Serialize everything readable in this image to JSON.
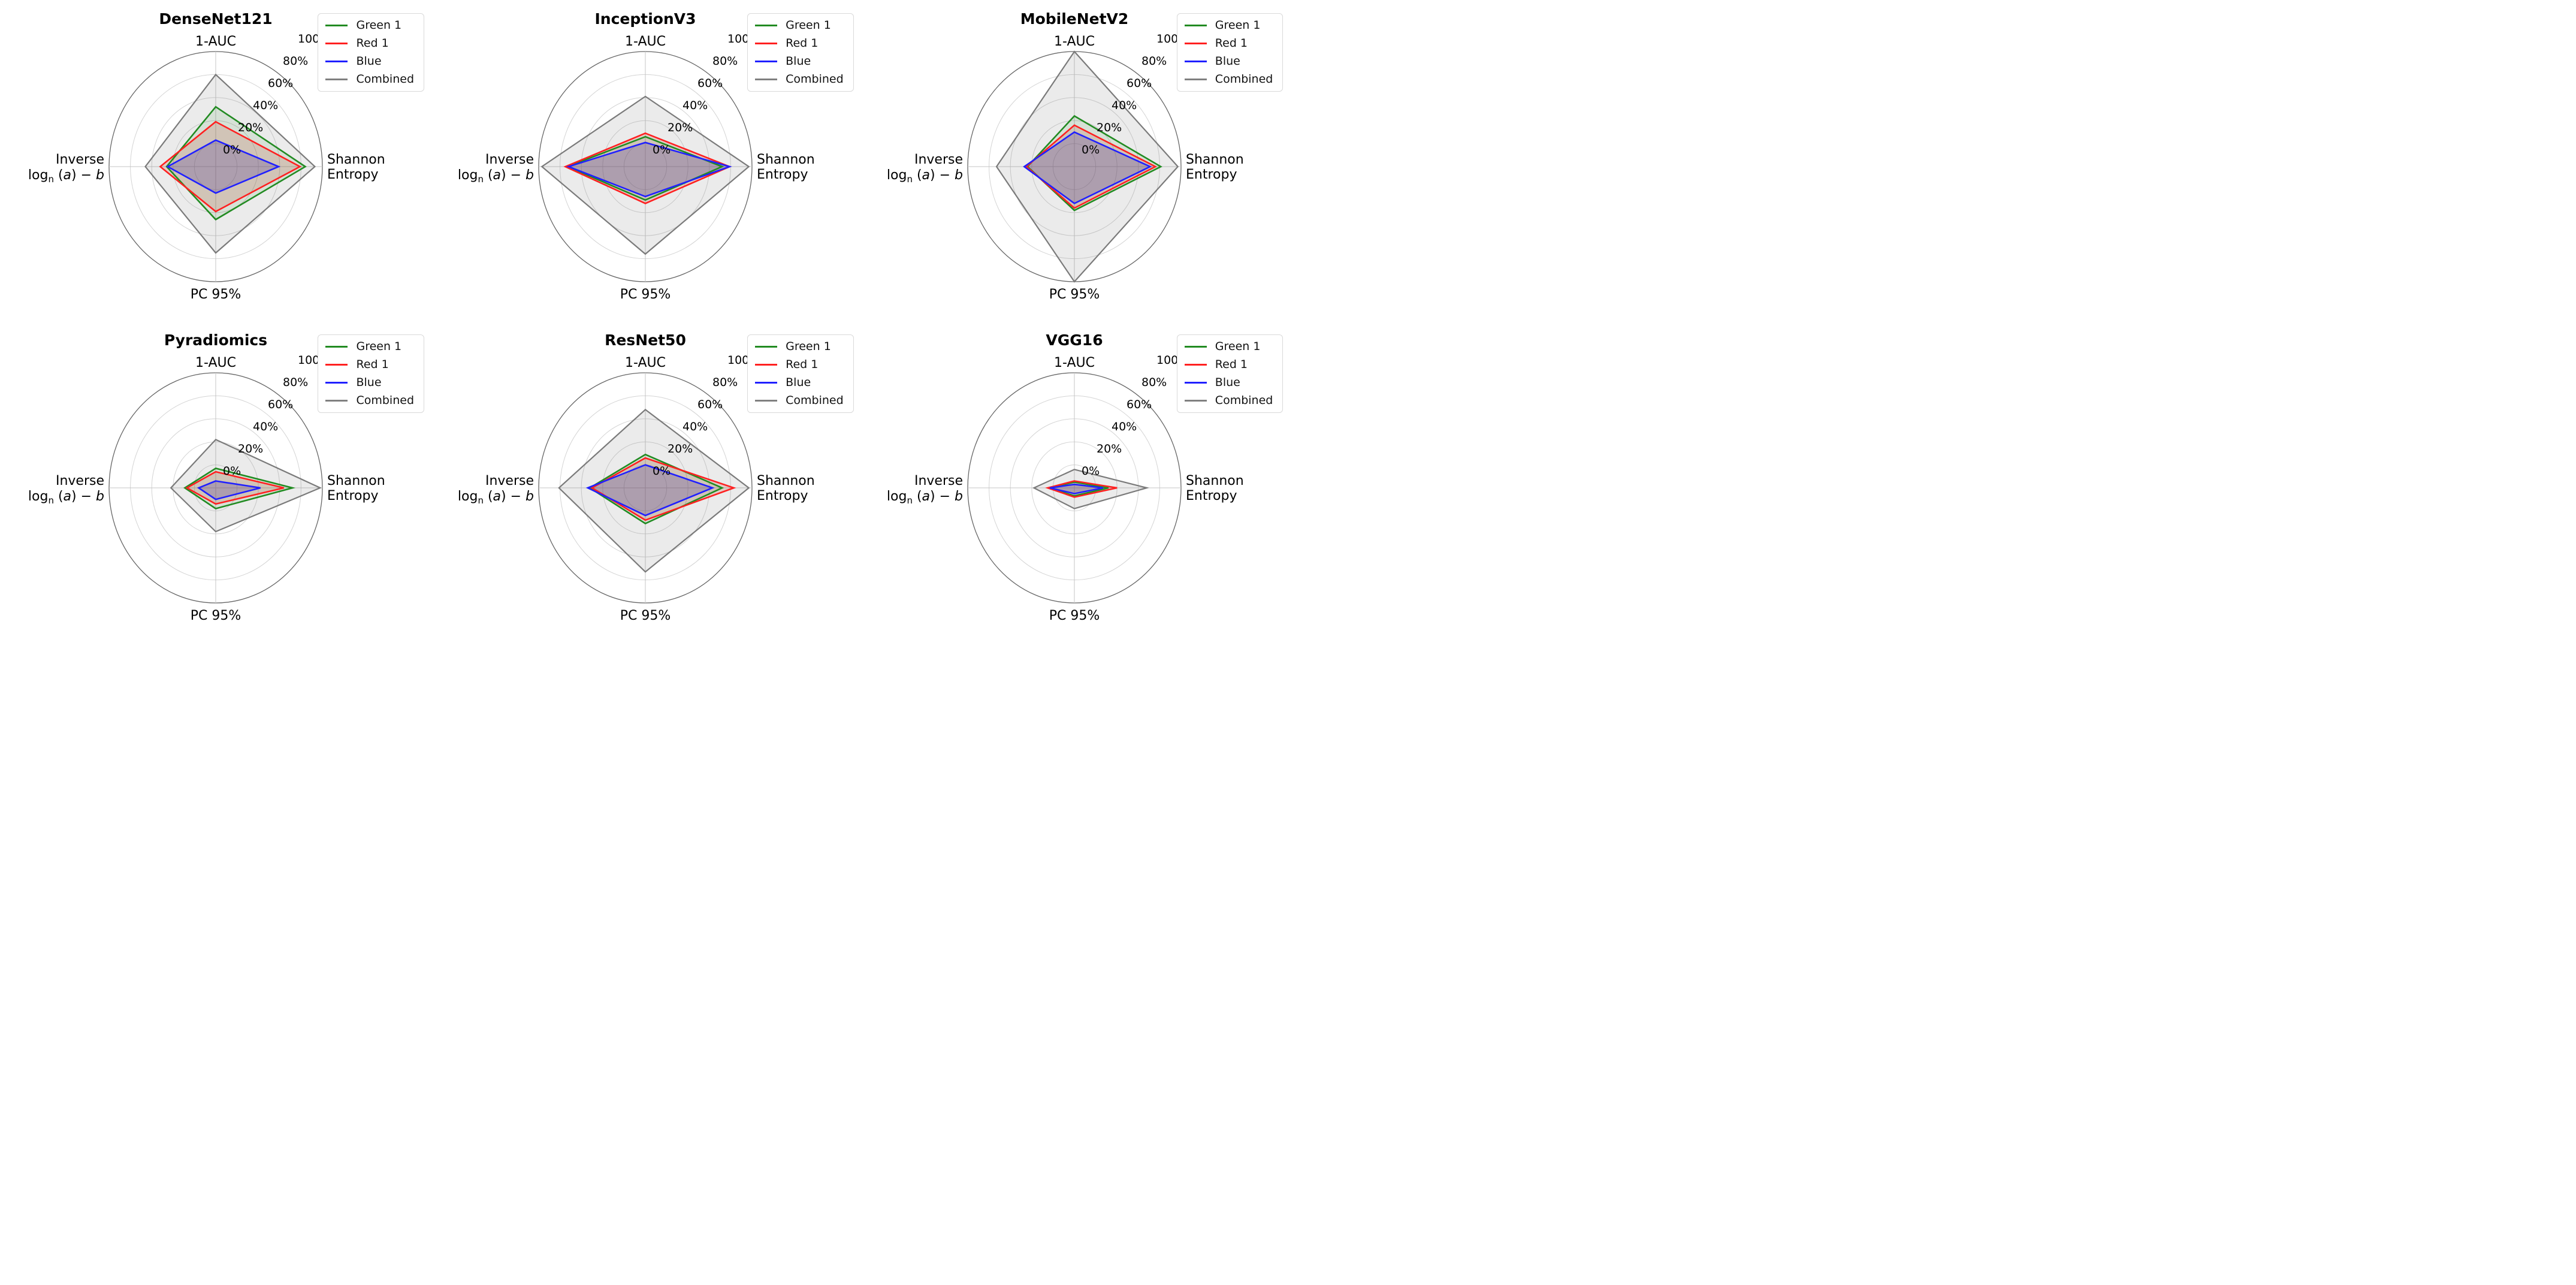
{
  "figure": {
    "background": "#ffffff",
    "rows": 2,
    "cols": 3
  },
  "legend": {
    "position": "top-right",
    "entries": [
      {
        "label": "Green 1",
        "color": "#228B22"
      },
      {
        "label": "Red 1",
        "color": "#FF2020"
      },
      {
        "label": "Blue",
        "color": "#2020FF"
      },
      {
        "label": "Combined",
        "color": "#808080"
      }
    ]
  },
  "radial_ticks": [
    "0%",
    "20%",
    "40%",
    "60%",
    "80%",
    "100%"
  ],
  "axes": {
    "top": "1-AUC",
    "right_lines": [
      "Shannon",
      "Entropy"
    ],
    "bottom": "PC 95%",
    "left_line1": "Inverse",
    "left_line2_parts": {
      "prefix": "log",
      "subscript": "n",
      "middle": " (",
      "var_a": "a",
      "suffix": ") − ",
      "var_b": "b"
    }
  },
  "chart_data": [
    {
      "type": "radar",
      "title": "DenseNet121",
      "categories": [
        "1-AUC",
        "Shannon Entropy",
        "PC 95%",
        "Inverse log_n(a) − b"
      ],
      "rlim": [
        0,
        100
      ],
      "units": "%",
      "grid": true,
      "legend_position": "upper right",
      "series": [
        {
          "name": "Green 1",
          "color": "#228B22",
          "values": [
            52,
            84,
            46,
            46
          ]
        },
        {
          "name": "Red 1",
          "color": "#FF2020",
          "values": [
            39,
            79,
            39,
            52
          ]
        },
        {
          "name": "Blue",
          "color": "#2020FF",
          "values": [
            23,
            59,
            23,
            45
          ]
        },
        {
          "name": "Combined",
          "color": "#808080",
          "values": [
            80,
            93,
            75,
            66
          ]
        }
      ]
    },
    {
      "type": "radar",
      "title": "InceptionV3",
      "categories": [
        "1-AUC",
        "Shannon Entropy",
        "PC 95%",
        "Inverse log_n(a) − b"
      ],
      "rlim": [
        0,
        100
      ],
      "units": "%",
      "grid": true,
      "legend_position": "upper right",
      "series": [
        {
          "name": "Green 1",
          "color": "#228B22",
          "values": [
            26,
            72,
            29,
            73
          ]
        },
        {
          "name": "Red 1",
          "color": "#FF2020",
          "values": [
            29,
            79,
            32,
            75
          ]
        },
        {
          "name": "Blue",
          "color": "#2020FF",
          "values": [
            21,
            79,
            26,
            72
          ]
        },
        {
          "name": "Combined",
          "color": "#808080",
          "values": [
            61,
            97,
            76,
            97
          ]
        }
      ]
    },
    {
      "type": "radar",
      "title": "MobileNetV2",
      "categories": [
        "1-AUC",
        "Shannon Entropy",
        "PC 95%",
        "Inverse log_n(a) − b"
      ],
      "rlim": [
        0,
        100
      ],
      "units": "%",
      "grid": true,
      "legend_position": "upper right",
      "series": [
        {
          "name": "Green 1",
          "color": "#228B22",
          "values": [
            44,
            81,
            38,
            44
          ]
        },
        {
          "name": "Red 1",
          "color": "#FF2020",
          "values": [
            36,
            76,
            36,
            45
          ]
        },
        {
          "name": "Blue",
          "color": "#2020FF",
          "values": [
            30,
            71,
            32,
            47
          ]
        },
        {
          "name": "Combined",
          "color": "#808080",
          "values": [
            100,
            97,
            100,
            73
          ]
        }
      ]
    },
    {
      "type": "radar",
      "title": "Pyradiomics",
      "categories": [
        "1-AUC",
        "Shannon Entropy",
        "PC 95%",
        "Inverse log_n(a) − b"
      ],
      "rlim": [
        0,
        100
      ],
      "units": "%",
      "grid": true,
      "legend_position": "upper right",
      "series": [
        {
          "name": "Green 1",
          "color": "#228B22",
          "values": [
            17,
            72,
            18,
            29
          ]
        },
        {
          "name": "Red 1",
          "color": "#FF2020",
          "values": [
            14,
            64,
            14,
            27
          ]
        },
        {
          "name": "Blue",
          "color": "#2020FF",
          "values": [
            6,
            42,
            10,
            16
          ]
        },
        {
          "name": "Combined",
          "color": "#808080",
          "values": [
            42,
            98,
            38,
            42
          ]
        }
      ]
    },
    {
      "type": "radar",
      "title": "ResNet50",
      "categories": [
        "1-AUC",
        "Shannon Entropy",
        "PC 95%",
        "Inverse log_n(a) − b"
      ],
      "rlim": [
        0,
        100
      ],
      "units": "%",
      "grid": true,
      "legend_position": "upper right",
      "series": [
        {
          "name": "Green 1",
          "color": "#228B22",
          "values": [
            29,
            72,
            31,
            52
          ]
        },
        {
          "name": "Red 1",
          "color": "#FF2020",
          "values": [
            26,
            83,
            28,
            50
          ]
        },
        {
          "name": "Blue",
          "color": "#2020FF",
          "values": [
            20,
            63,
            24,
            54
          ]
        },
        {
          "name": "Combined",
          "color": "#808080",
          "values": [
            68,
            97,
            73,
            81
          ]
        }
      ]
    },
    {
      "type": "radar",
      "title": "VGG16",
      "categories": [
        "1-AUC",
        "Shannon Entropy",
        "PC 95%",
        "Inverse log_n(a) − b"
      ],
      "rlim": [
        0,
        100
      ],
      "units": "%",
      "grid": true,
      "legend_position": "upper right",
      "series": [
        {
          "name": "Green 1",
          "color": "#228B22",
          "values": [
            5,
            32,
            7,
            24
          ]
        },
        {
          "name": "Red 1",
          "color": "#FF2020",
          "values": [
            6,
            40,
            8,
            25
          ]
        },
        {
          "name": "Blue",
          "color": "#2020FF",
          "values": [
            3,
            27,
            5,
            23
          ]
        },
        {
          "name": "Combined",
          "color": "#808080",
          "values": [
            16,
            68,
            18,
            38
          ]
        }
      ]
    }
  ]
}
